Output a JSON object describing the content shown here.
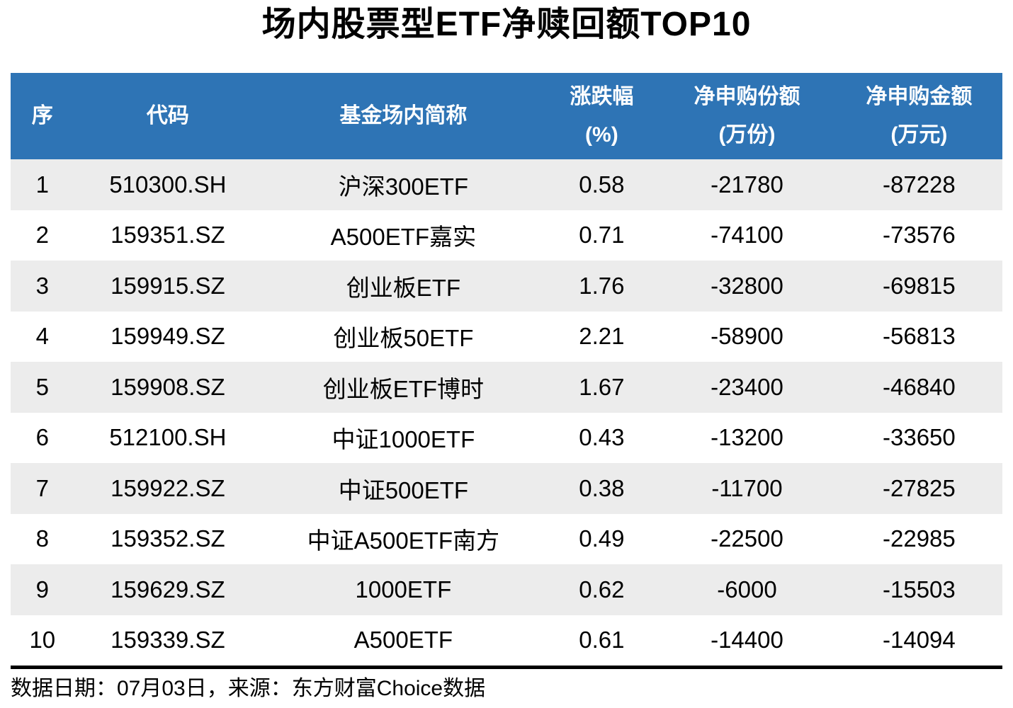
{
  "title": "场内股票型ETF净赎回额TOP10",
  "table": {
    "headers": [
      {
        "line1": "序",
        "line2": ""
      },
      {
        "line1": "代码",
        "line2": ""
      },
      {
        "line1": "基金场内简称",
        "line2": ""
      },
      {
        "line1": "涨跌幅",
        "line2": "(%)"
      },
      {
        "line1": "净申购份额",
        "line2": "(万份)"
      },
      {
        "line1": "净申购金额",
        "line2": "(万元)"
      }
    ],
    "rows": [
      [
        "1",
        "510300.SH",
        "沪深300ETF",
        "0.58",
        "-21780",
        "-87228"
      ],
      [
        "2",
        "159351.SZ",
        "A500ETF嘉实",
        "0.71",
        "-74100",
        "-73576"
      ],
      [
        "3",
        "159915.SZ",
        "创业板ETF",
        "1.76",
        "-32800",
        "-69815"
      ],
      [
        "4",
        "159949.SZ",
        "创业板50ETF",
        "2.21",
        "-58900",
        "-56813"
      ],
      [
        "5",
        "159908.SZ",
        "创业板ETF博时",
        "1.67",
        "-23400",
        "-46840"
      ],
      [
        "6",
        "512100.SH",
        "中证1000ETF",
        "0.43",
        "-13200",
        "-33650"
      ],
      [
        "7",
        "159922.SZ",
        "中证500ETF",
        "0.38",
        "-11700",
        "-27825"
      ],
      [
        "8",
        "159352.SZ",
        "中证A500ETF南方",
        "0.49",
        "-22500",
        "-22985"
      ],
      [
        "9",
        "159629.SZ",
        "1000ETF",
        "0.62",
        "-6000",
        "-15503"
      ],
      [
        "10",
        "159339.SZ",
        "A500ETF",
        "0.61",
        "-14400",
        "-14094"
      ]
    ]
  },
  "footer": {
    "text": "数据日期：07月03日，来源：东方财富Choice数据"
  },
  "colors": {
    "header_bg": "#2E74B5",
    "header_text": "#FFFFFF",
    "row_alt_bg": "#ECECEC",
    "divider": "#000000"
  },
  "chart_data": {
    "type": "table",
    "title": "场内股票型ETF净赎回额TOP10",
    "columns": [
      "序",
      "代码",
      "基金场内简称",
      "涨跌幅(%)",
      "净申购份额(万份)",
      "净申购金额(万元)"
    ],
    "rows": [
      [
        1,
        "510300.SH",
        "沪深300ETF",
        0.58,
        -21780,
        -87228
      ],
      [
        2,
        "159351.SZ",
        "A500ETF嘉实",
        0.71,
        -74100,
        -73576
      ],
      [
        3,
        "159915.SZ",
        "创业板ETF",
        1.76,
        -32800,
        -69815
      ],
      [
        4,
        "159949.SZ",
        "创业板50ETF",
        2.21,
        -58900,
        -56813
      ],
      [
        5,
        "159908.SZ",
        "创业板ETF博时",
        1.67,
        -23400,
        -46840
      ],
      [
        6,
        "512100.SH",
        "中证1000ETF",
        0.43,
        -13200,
        -33650
      ],
      [
        7,
        "159922.SZ",
        "中证500ETF",
        0.38,
        -11700,
        -27825
      ],
      [
        8,
        "159352.SZ",
        "中证A500ETF南方",
        0.49,
        -22500,
        -22985
      ],
      [
        9,
        "159629.SZ",
        "1000ETF",
        0.62,
        -6000,
        -15503
      ],
      [
        10,
        "159339.SZ",
        "A500ETF",
        0.61,
        -14400,
        -14094
      ]
    ],
    "source_note": "数据日期：07月03日，来源：东方财富Choice数据",
    "layout": {
      "header_style": "blue-band",
      "zebra_stripes": true,
      "grid": false
    }
  }
}
